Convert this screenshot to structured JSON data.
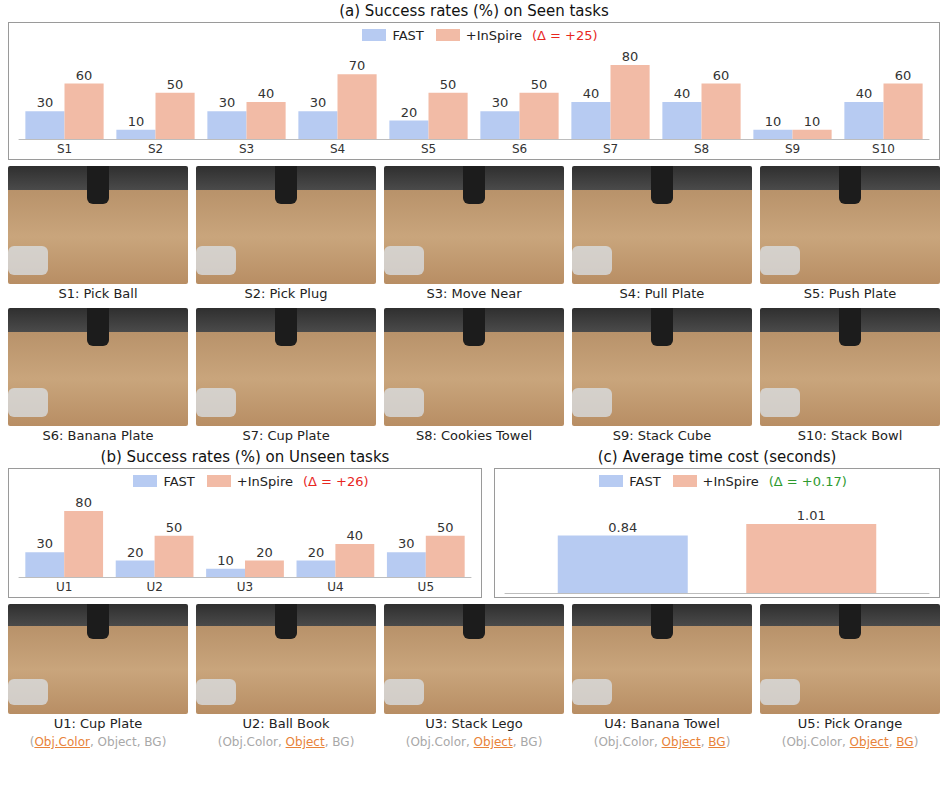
{
  "chart_data": [
    {
      "type": "bar",
      "title": "(a) Success rates (%) on Seen tasks",
      "categories": [
        "S1",
        "S2",
        "S3",
        "S4",
        "S5",
        "S6",
        "S7",
        "S8",
        "S9",
        "S10"
      ],
      "series": [
        {
          "name": "FAST",
          "color": "#b7cbf2",
          "values": [
            30,
            10,
            30,
            30,
            20,
            30,
            40,
            40,
            10,
            40
          ]
        },
        {
          "name": "+InSpire",
          "color": "#f2bba6",
          "values": [
            60,
            50,
            40,
            70,
            50,
            50,
            80,
            60,
            10,
            60
          ]
        }
      ],
      "annotation": {
        "text": "(Δ = +25)",
        "color": "#e8271f"
      },
      "ylim": [
        0,
        80
      ],
      "data_labels": true,
      "tick_labels": "x",
      "legend": "top",
      "grid": false
    },
    {
      "type": "bar",
      "title": "(b) Success rates (%) on Unseen tasks",
      "categories": [
        "U1",
        "U2",
        "U3",
        "U4",
        "U5"
      ],
      "series": [
        {
          "name": "FAST",
          "color": "#b7cbf2",
          "values": [
            30,
            20,
            10,
            20,
            30
          ]
        },
        {
          "name": "+InSpire",
          "color": "#f2bba6",
          "values": [
            80,
            50,
            20,
            40,
            50
          ]
        }
      ],
      "annotation": {
        "text": "(Δ = +26)",
        "color": "#e8271f"
      },
      "ylim": [
        0,
        80
      ],
      "data_labels": true,
      "tick_labels": "x",
      "legend": "top",
      "grid": false
    },
    {
      "type": "bar",
      "title": "(c) Average time cost (seconds)",
      "categories": [
        null
      ],
      "series": [
        {
          "name": "FAST",
          "color": "#b7cbf2",
          "values": [
            0.84
          ]
        },
        {
          "name": "+InSpire",
          "color": "#f2bba6",
          "values": [
            1.01
          ]
        }
      ],
      "annotation": {
        "text": "(Δ = +0.17)",
        "color": "#2e9a2e"
      },
      "ylim": [
        0,
        1.2
      ],
      "data_labels": true,
      "tick_labels": false,
      "legend": "top",
      "grid": false
    }
  ],
  "seen_tasks": [
    "S1: Pick Ball",
    "S2: Pick Plug",
    "S3: Move Near",
    "S4: Pull Plate",
    "S5: Push Plate",
    "S6: Banana Plate",
    "S7: Cup Plate",
    "S8: Cookies Towel",
    "S9: Stack Cube",
    "S10: Stack Bowl"
  ],
  "unseen_tasks": [
    {
      "caption": "U1: Cup Plate",
      "attributes": [
        {
          "text": "(",
          "highlight": false
        },
        {
          "text": "Obj.Color",
          "highlight": true
        },
        {
          "text": ", ",
          "highlight": false
        },
        {
          "text": "Object",
          "highlight": false
        },
        {
          "text": ", ",
          "highlight": false
        },
        {
          "text": "BG",
          "highlight": false
        },
        {
          "text": ")",
          "highlight": false
        }
      ]
    },
    {
      "caption": "U2: Ball Book",
      "attributes": [
        {
          "text": "(",
          "highlight": false
        },
        {
          "text": "Obj.Color",
          "highlight": false
        },
        {
          "text": ", ",
          "highlight": false
        },
        {
          "text": "Object",
          "highlight": true
        },
        {
          "text": ", ",
          "highlight": false
        },
        {
          "text": "BG",
          "highlight": false
        },
        {
          "text": ")",
          "highlight": false
        }
      ]
    },
    {
      "caption": "U3: Stack Lego",
      "attributes": [
        {
          "text": "(",
          "highlight": false
        },
        {
          "text": "Obj.Color",
          "highlight": false
        },
        {
          "text": ", ",
          "highlight": false
        },
        {
          "text": "Object",
          "highlight": true
        },
        {
          "text": ", ",
          "highlight": false
        },
        {
          "text": "BG",
          "highlight": false
        },
        {
          "text": ")",
          "highlight": false
        }
      ]
    },
    {
      "caption": "U4: Banana Towel",
      "attributes": [
        {
          "text": "(",
          "highlight": false
        },
        {
          "text": "Obj.Color",
          "highlight": false
        },
        {
          "text": ", ",
          "highlight": false
        },
        {
          "text": "Object",
          "highlight": true
        },
        {
          "text": ", ",
          "highlight": false
        },
        {
          "text": "BG",
          "highlight": true
        },
        {
          "text": ")",
          "highlight": false
        }
      ]
    },
    {
      "caption": "U5: Pick Orange",
      "attributes": [
        {
          "text": "(",
          "highlight": false
        },
        {
          "text": "Obj.Color",
          "highlight": false
        },
        {
          "text": ", ",
          "highlight": false
        },
        {
          "text": "Object",
          "highlight": true
        },
        {
          "text": ", ",
          "highlight": false
        },
        {
          "text": "BG",
          "highlight": true
        },
        {
          "text": ")",
          "highlight": false
        }
      ]
    }
  ]
}
